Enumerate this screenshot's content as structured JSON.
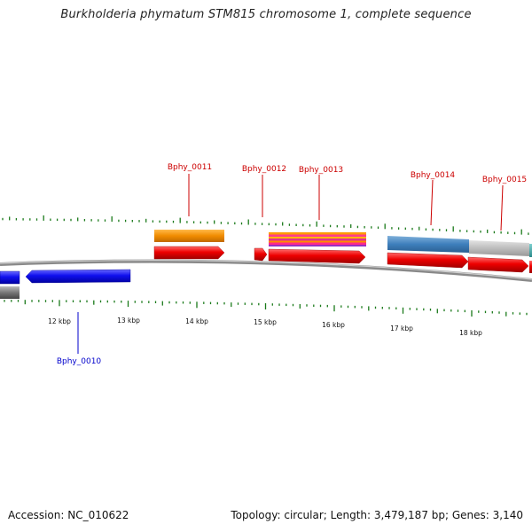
{
  "title": "Burkholderia phymatum STM815 chromosome 1, complete sequence",
  "footer": {
    "accession": "Accession: NC_010622",
    "topology": "Topology: circular; Length: 3,479,187 bp; Genes: 3,140"
  },
  "colors": {
    "forward_cds": "#ff0000",
    "reverse_cds": "#1f1fff",
    "label_forward": "#cc0000",
    "label_reverse": "#0000cc",
    "ticks": "#1a7a1a",
    "backbone": "#888888"
  },
  "kbp_labels": [
    "12 kbp",
    "13 kbp",
    "14 kbp",
    "15 kbp",
    "16 kbp",
    "17 kbp",
    "18 kbp"
  ],
  "genes": [
    {
      "name": "Bphy_0010",
      "strand": "reverse"
    },
    {
      "name": "Bphy_0011",
      "strand": "forward"
    },
    {
      "name": "Bphy_0012",
      "strand": "forward"
    },
    {
      "name": "Bphy_0013",
      "strand": "forward"
    },
    {
      "name": "Bphy_0014",
      "strand": "forward"
    },
    {
      "name": "Bphy_0015",
      "strand": "forward"
    }
  ]
}
